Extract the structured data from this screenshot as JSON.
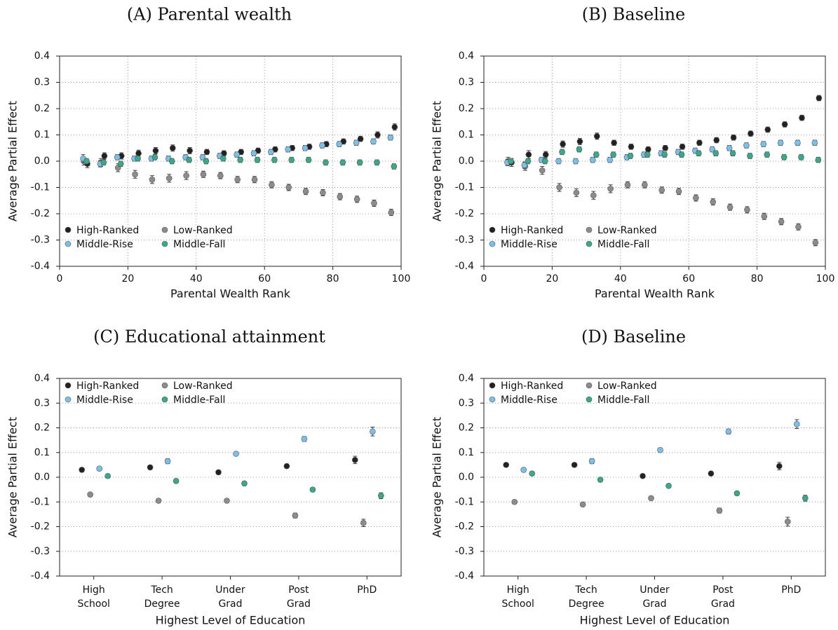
{
  "chart_data": [
    {
      "type": "scatter",
      "title": "(A) Parental wealth",
      "x_label": "Parental Wealth Rank",
      "y_label": "Average Partial Effect",
      "x": [
        7.5,
        12.5,
        17.5,
        22.5,
        27.5,
        32.5,
        37.5,
        42.5,
        47.5,
        52.5,
        57.5,
        62.5,
        67.5,
        72.5,
        77.5,
        82.5,
        87.5,
        92.5,
        97.5
      ],
      "xlim": [
        0,
        100
      ],
      "xticks": [
        0,
        20,
        40,
        60,
        80,
        100
      ],
      "ylim": [
        -0.4,
        0.4
      ],
      "yticks": [
        -0.4,
        -0.3,
        -0.2,
        -0.1,
        {
          "value": 0,
          "label": "0.0"
        },
        0.1,
        0.2,
        0.3,
        0.4
      ],
      "grid": "both",
      "legend": "lower left",
      "series": [
        {
          "name": "High-Ranked",
          "color": "#222222",
          "values": [
            -0.01,
            0.02,
            0.02,
            0.03,
            0.04,
            0.05,
            0.04,
            0.035,
            0.03,
            0.035,
            0.04,
            0.045,
            0.05,
            0.055,
            0.065,
            0.075,
            0.085,
            0.1,
            0.13
          ],
          "errors": [
            0.015,
            0.012,
            0.012,
            0.012,
            0.012,
            0.012,
            0.012,
            0.01,
            0.01,
            0.01,
            0.01,
            0.01,
            0.01,
            0.01,
            0.01,
            0.01,
            0.01,
            0.012,
            0.012
          ]
        },
        {
          "name": "Low-Ranked",
          "color": "#8c8c8c",
          "values": [
            0,
            -0.005,
            -0.025,
            -0.05,
            -0.07,
            -0.065,
            -0.055,
            -0.05,
            -0.055,
            -0.07,
            -0.07,
            -0.09,
            -0.1,
            -0.115,
            -0.12,
            -0.135,
            -0.145,
            -0.16,
            -0.195
          ],
          "errors": [
            0.015,
            0.015,
            0.015,
            0.015,
            0.015,
            0.015,
            0.015,
            0.012,
            0.012,
            0.012,
            0.012,
            0.012,
            0.012,
            0.012,
            0.012,
            0.012,
            0.012,
            0.012,
            0.012
          ]
        },
        {
          "name": "Middle-Rise",
          "color": "#7cc0ea",
          "values": [
            0.01,
            -0.01,
            0.015,
            0.01,
            0.01,
            0.01,
            0.015,
            0.015,
            0.02,
            0.025,
            0.03,
            0.035,
            0.045,
            0.05,
            0.06,
            0.065,
            0.07,
            0.075,
            0.09
          ],
          "errors": [
            0.015,
            0.012,
            0.01,
            0.01,
            0.01,
            0.01,
            0.01,
            0.01,
            0.01,
            0.01,
            0.01,
            0.01,
            0.01,
            0.01,
            0.01,
            0.01,
            0.01,
            0.01,
            0.01
          ]
        },
        {
          "name": "Middle-Fall",
          "color": "#3aa88a",
          "values": [
            0,
            -0.005,
            -0.01,
            0.01,
            0.015,
            0,
            0.005,
            0,
            0.01,
            0.005,
            0.005,
            0.005,
            0.005,
            0.005,
            -0.005,
            -0.005,
            -0.005,
            -0.005,
            -0.02
          ],
          "errors": [
            0.01,
            0.01,
            0.01,
            0.01,
            0.01,
            0.01,
            0.01,
            0.01,
            0.01,
            0.01,
            0.01,
            0.01,
            0.01,
            0.01,
            0.01,
            0.01,
            0.01,
            0.01,
            0.01
          ]
        }
      ]
    },
    {
      "type": "scatter",
      "title": "(B) Baseline",
      "x_label": "Parental Wealth Rank",
      "y_label": "Average Partial Effect",
      "x": [
        7.5,
        12.5,
        17.5,
        22.5,
        27.5,
        32.5,
        37.5,
        42.5,
        47.5,
        52.5,
        57.5,
        62.5,
        67.5,
        72.5,
        77.5,
        82.5,
        87.5,
        92.5,
        97.5
      ],
      "xlim": [
        0,
        100
      ],
      "xticks": [
        0,
        20,
        40,
        60,
        80,
        100
      ],
      "ylim": [
        -0.4,
        0.4
      ],
      "yticks": [
        -0.4,
        -0.3,
        -0.2,
        -0.1,
        {
          "value": 0,
          "label": "0.0"
        },
        0.1,
        0.2,
        0.3,
        0.4
      ],
      "grid": "both",
      "legend": "lower left",
      "series": [
        {
          "name": "High-Ranked",
          "color": "#222222",
          "values": [
            -0.005,
            0.025,
            0.025,
            0.065,
            0.075,
            0.095,
            0.07,
            0.055,
            0.045,
            0.05,
            0.055,
            0.07,
            0.08,
            0.09,
            0.105,
            0.12,
            0.14,
            0.165,
            0.24
          ],
          "errors": [
            0.015,
            0.015,
            0.012,
            0.012,
            0.012,
            0.012,
            0.01,
            0.01,
            0.01,
            0.01,
            0.01,
            0.01,
            0.01,
            0.01,
            0.01,
            0.01,
            0.01,
            0.01,
            0.01
          ]
        },
        {
          "name": "Low-Ranked",
          "color": "#8c8c8c",
          "values": [
            0,
            -0.02,
            -0.035,
            -0.1,
            -0.12,
            -0.13,
            -0.105,
            -0.09,
            -0.09,
            -0.11,
            -0.115,
            -0.14,
            -0.155,
            -0.175,
            -0.185,
            -0.21,
            -0.23,
            -0.25,
            -0.31
          ],
          "errors": [
            0.015,
            0.015,
            0.015,
            0.015,
            0.015,
            0.015,
            0.015,
            0.012,
            0.012,
            0.012,
            0.012,
            0.012,
            0.012,
            0.012,
            0.012,
            0.012,
            0.012,
            0.012,
            0.012
          ]
        },
        {
          "name": "Middle-Rise",
          "color": "#7cc0ea",
          "values": [
            -0.005,
            -0.015,
            0.005,
            0,
            0,
            0.005,
            0.005,
            0.015,
            0.025,
            0.03,
            0.035,
            0.04,
            0.045,
            0.05,
            0.06,
            0.065,
            0.07,
            0.07,
            0.07
          ],
          "errors": [
            0.012,
            0.012,
            0.01,
            0.01,
            0.01,
            0.01,
            0.01,
            0.01,
            0.01,
            0.01,
            0.01,
            0.01,
            0.01,
            0.01,
            0.01,
            0.01,
            0.01,
            0.01,
            0.01
          ]
        },
        {
          "name": "Middle-Fall",
          "color": "#3aa88a",
          "values": [
            0,
            0,
            0,
            0.035,
            0.045,
            0.025,
            0.025,
            0.02,
            0.025,
            0.025,
            0.025,
            0.03,
            0.03,
            0.03,
            0.02,
            0.025,
            0.015,
            0.015,
            0.005
          ],
          "errors": [
            0.01,
            0.01,
            0.01,
            0.01,
            0.01,
            0.01,
            0.01,
            0.01,
            0.01,
            0.01,
            0.01,
            0.01,
            0.01,
            0.01,
            0.01,
            0.01,
            0.01,
            0.01,
            0.01
          ]
        }
      ]
    },
    {
      "type": "dot",
      "title": "(C) Educational attainment",
      "x_label": "Highest Level of Education",
      "y_label": "Average Partial Effect",
      "categories": [
        "High School",
        "Tech Degree",
        "Under Grad",
        "Post Grad",
        "PhD"
      ],
      "ylim": [
        -0.4,
        0.4
      ],
      "yticks": [
        -0.4,
        -0.3,
        -0.2,
        -0.1,
        {
          "value": 0,
          "label": "0.0"
        },
        0.1,
        0.2,
        0.3,
        0.4
      ],
      "grid": "y",
      "legend": "upper left",
      "series": [
        {
          "name": "High-Ranked",
          "color": "#222222",
          "values": [
            0.03,
            0.04,
            0.02,
            0.045,
            0.07
          ],
          "errors": [
            0.008,
            0.008,
            0.008,
            0.008,
            0.015
          ]
        },
        {
          "name": "Low-Ranked",
          "color": "#8c8c8c",
          "values": [
            -0.07,
            -0.095,
            -0.095,
            -0.155,
            -0.185
          ],
          "errors": [
            0.008,
            0.008,
            0.008,
            0.01,
            0.015
          ]
        },
        {
          "name": "Middle-Rise",
          "color": "#7cc0ea",
          "values": [
            0.035,
            0.065,
            0.095,
            0.155,
            0.185
          ],
          "errors": [
            0.008,
            0.01,
            0.008,
            0.01,
            0.018
          ]
        },
        {
          "name": "Middle-Fall",
          "color": "#3aa88a",
          "values": [
            0.005,
            -0.015,
            -0.025,
            -0.05,
            -0.075
          ],
          "errors": [
            0.008,
            0.008,
            0.008,
            0.008,
            0.012
          ]
        }
      ]
    },
    {
      "type": "dot",
      "title": "(D) Baseline",
      "x_label": "Highest Level of Education",
      "y_label": "Average Partial Effect",
      "categories": [
        "High School",
        "Tech Degree",
        "Under Grad",
        "Post Grad",
        "PhD"
      ],
      "ylim": [
        -0.4,
        0.4
      ],
      "yticks": [
        -0.4,
        -0.3,
        -0.2,
        -0.1,
        {
          "value": 0,
          "label": "0.0"
        },
        0.1,
        0.2,
        0.3,
        0.4
      ],
      "grid": "y",
      "legend": "upper left",
      "series": [
        {
          "name": "High-Ranked",
          "color": "#222222",
          "values": [
            0.05,
            0.05,
            0.005,
            0.015,
            0.045
          ],
          "errors": [
            0.008,
            0.008,
            0.008,
            0.008,
            0.015
          ]
        },
        {
          "name": "Low-Ranked",
          "color": "#8c8c8c",
          "values": [
            -0.1,
            -0.11,
            -0.085,
            -0.135,
            -0.18
          ],
          "errors": [
            0.008,
            0.008,
            0.008,
            0.01,
            0.018
          ]
        },
        {
          "name": "Middle-Rise",
          "color": "#7cc0ea",
          "values": [
            0.03,
            0.065,
            0.11,
            0.185,
            0.215
          ],
          "errors": [
            0.008,
            0.01,
            0.008,
            0.01,
            0.018
          ]
        },
        {
          "name": "Middle-Fall",
          "color": "#3aa88a",
          "values": [
            0.015,
            -0.01,
            -0.035,
            -0.065,
            -0.085
          ],
          "errors": [
            0.008,
            0.008,
            0.008,
            0.008,
            0.012
          ]
        }
      ]
    }
  ]
}
